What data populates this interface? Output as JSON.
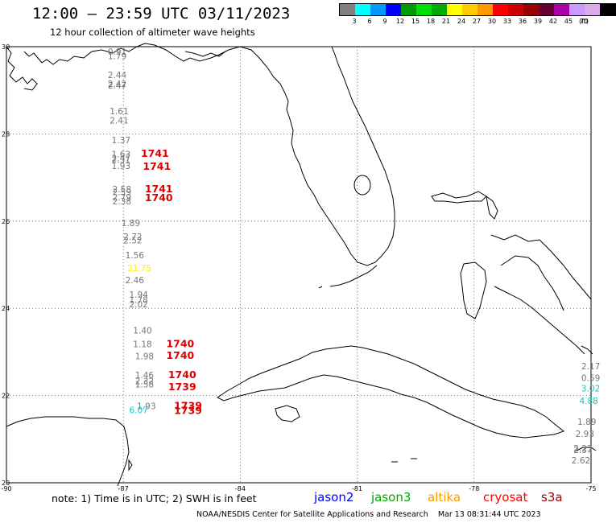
{
  "header": {
    "title": "12:00 – 23:59 UTC 03/11/2023",
    "subtitle": "12 hour collection of altimeter wave heights"
  },
  "colorbar": {
    "colors": [
      "#808080",
      "#00ffff",
      "#0099ff",
      "#0000ff",
      "#009900",
      "#00dd00",
      "#00aa00",
      "#ffff00",
      "#ffcc00",
      "#ff9900",
      "#ff0000",
      "#cc0000",
      "#990000",
      "#660033",
      "#aa00aa",
      "#cc99ff",
      "#ddaaee",
      "#000000"
    ],
    "labels": [
      "3",
      "6",
      "9",
      "12",
      "15",
      "18",
      "21",
      "24",
      "27",
      "30",
      "33",
      "36",
      "39",
      "42",
      "45",
      "70"
    ],
    "unit": "(ft)"
  },
  "axes": {
    "y_labels": [
      "30",
      "28",
      "26",
      "24",
      "22",
      "20"
    ],
    "x_labels": [
      "-90",
      "-87",
      "-84",
      "-81",
      "-78",
      "-75"
    ]
  },
  "obs": {
    "gray": [
      {
        "lon": -87.4,
        "lat": 29.82,
        "t": "0.91"
      },
      {
        "lon": -87.4,
        "lat": 29.71,
        "t": "1.79"
      },
      {
        "lon": -87.4,
        "lat": 29.28,
        "t": "2.44"
      },
      {
        "lon": -87.4,
        "lat": 29.08,
        "t": "2.42"
      },
      {
        "lon": -87.4,
        "lat": 29.04,
        "t": "2.47"
      },
      {
        "lon": -87.35,
        "lat": 28.45,
        "t": "1.61"
      },
      {
        "lon": -87.35,
        "lat": 28.24,
        "t": "2.41"
      },
      {
        "lon": -87.3,
        "lat": 27.79,
        "t": "1.37"
      },
      {
        "lon": -87.3,
        "lat": 27.46,
        "t": "1.63"
      },
      {
        "lon": -87.3,
        "lat": 27.37,
        "t": "2.47"
      },
      {
        "lon": -87.3,
        "lat": 27.33,
        "t": "2.31"
      },
      {
        "lon": -87.3,
        "lat": 27.2,
        "t": "1.93"
      },
      {
        "lon": -87.28,
        "lat": 26.66,
        "t": "2.58"
      },
      {
        "lon": -87.28,
        "lat": 26.6,
        "t": "2.59"
      },
      {
        "lon": -87.28,
        "lat": 26.48,
        "t": "2.79"
      },
      {
        "lon": -87.28,
        "lat": 26.38,
        "t": "2.38"
      },
      {
        "lon": -87.05,
        "lat": 25.89,
        "t": "1.89"
      },
      {
        "lon": -87.0,
        "lat": 25.57,
        "t": "2.72"
      },
      {
        "lon": -87.0,
        "lat": 25.49,
        "t": "2.52"
      },
      {
        "lon": -86.95,
        "lat": 25.15,
        "t": "1.56"
      },
      {
        "lon": -86.95,
        "lat": 24.58,
        "t": "2.46"
      },
      {
        "lon": -86.85,
        "lat": 24.24,
        "t": "1.94"
      },
      {
        "lon": -86.85,
        "lat": 24.12,
        "t": "1.78"
      },
      {
        "lon": -86.85,
        "lat": 24.02,
        "t": "2.02"
      },
      {
        "lon": -86.75,
        "lat": 23.42,
        "t": "1.40"
      },
      {
        "lon": -86.75,
        "lat": 23.11,
        "t": "1.18"
      },
      {
        "lon": -86.7,
        "lat": 22.83,
        "t": "1.98"
      },
      {
        "lon": -86.7,
        "lat": 22.4,
        "t": "1.46"
      },
      {
        "lon": -86.7,
        "lat": 22.26,
        "t": "2.32"
      },
      {
        "lon": -86.7,
        "lat": 22.19,
        "t": "1.58"
      },
      {
        "lon": -86.65,
        "lat": 21.69,
        "t": "1.93"
      },
      {
        "lon": -75.25,
        "lat": 22.6,
        "t": "2.17"
      },
      {
        "lon": -75.25,
        "lat": 22.33,
        "t": "0.59"
      },
      {
        "lon": -75.35,
        "lat": 21.33,
        "t": "1.89"
      },
      {
        "lon": -75.4,
        "lat": 21.05,
        "t": "2.93"
      },
      {
        "lon": -75.45,
        "lat": 20.72,
        "t": "2.23"
      },
      {
        "lon": -75.45,
        "lat": 20.68,
        "t": "2.37"
      },
      {
        "lon": -75.5,
        "lat": 20.44,
        "t": "2.62"
      }
    ],
    "red": [
      {
        "lon": -86.55,
        "lat": 27.47,
        "t": "1741"
      },
      {
        "lon": -86.5,
        "lat": 27.18,
        "t": "1741"
      },
      {
        "lon": -86.45,
        "lat": 26.66,
        "t": "1741"
      },
      {
        "lon": -86.45,
        "lat": 26.46,
        "t": "1740"
      },
      {
        "lon": -85.9,
        "lat": 23.11,
        "t": "1740"
      },
      {
        "lon": -85.9,
        "lat": 22.84,
        "t": "1740"
      },
      {
        "lon": -85.85,
        "lat": 22.4,
        "t": "1740"
      },
      {
        "lon": -85.85,
        "lat": 22.12,
        "t": "1739"
      },
      {
        "lon": -85.7,
        "lat": 21.69,
        "t": "1739"
      },
      {
        "lon": -85.7,
        "lat": 21.58,
        "t": "1739"
      }
    ],
    "yellow": [
      {
        "lon": -86.9,
        "lat": 24.85,
        "t": "21.75"
      }
    ],
    "cyan": [
      {
        "lon": -86.85,
        "lat": 21.6,
        "t": "6.07"
      },
      {
        "lon": -75.25,
        "lat": 22.09,
        "t": "3.02"
      },
      {
        "lon": -75.3,
        "lat": 21.81,
        "t": "4.88"
      }
    ]
  },
  "footer": {
    "note": "note: 1) Time is in UTC; 2) SWH is in feet",
    "satellites": [
      {
        "name": "jason2",
        "color": "#0000ff"
      },
      {
        "name": "jason3",
        "color": "#00aa00"
      },
      {
        "name": "altika",
        "color": "#ff9900"
      },
      {
        "name": "cryosat",
        "color": "#ff0000"
      },
      {
        "name": "s3a",
        "color": "#990000"
      }
    ],
    "credit": "NOAA/NESDIS Center for Satellite Applications and Research",
    "timestamp": "Mar 13 08:31:44 UTC 2023"
  }
}
